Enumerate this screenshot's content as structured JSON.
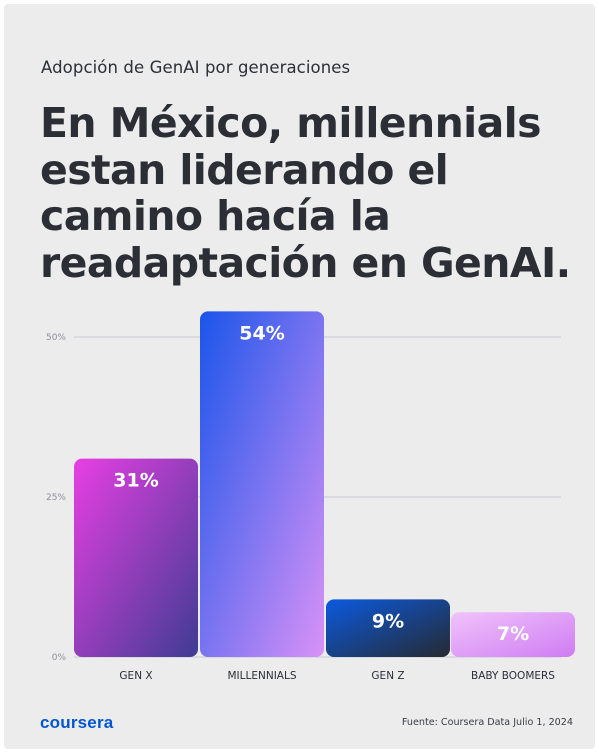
{
  "subtitle": "Adopción de GenAI por generaciones",
  "headline": "En México, millennials estan liderando el camino hacía la readaptación en GenAI.",
  "brand": "coursera",
  "source": "Fuente: Coursera Data Julio 1, 2024",
  "chart_data": {
    "type": "bar",
    "categories": [
      "GEN X",
      "MILLENNIALS",
      "GEN Z",
      "BABY BOOMERS"
    ],
    "values": [
      31,
      54,
      9,
      7
    ],
    "data_labels": [
      "31%",
      "54%",
      "9%",
      "7%"
    ],
    "y_ticks": [
      0,
      25,
      50
    ],
    "y_tick_labels": [
      "0%",
      "25%",
      "50%"
    ],
    "ylim": [
      0,
      55
    ],
    "grid": true,
    "legend": "none",
    "bar_gradients": [
      [
        "#e83fe3",
        "#3f3c93"
      ],
      [
        "#1a55ea",
        "#d992f7"
      ],
      [
        "#0b5ae0",
        "#262a30"
      ],
      [
        "#f0c3fa",
        "#cf7cf3"
      ]
    ],
    "colors": {
      "grid": "#c9cacf",
      "tick_text": "#8e9096",
      "category_text": "#2b2f36",
      "value_text": "#ffffff"
    }
  }
}
